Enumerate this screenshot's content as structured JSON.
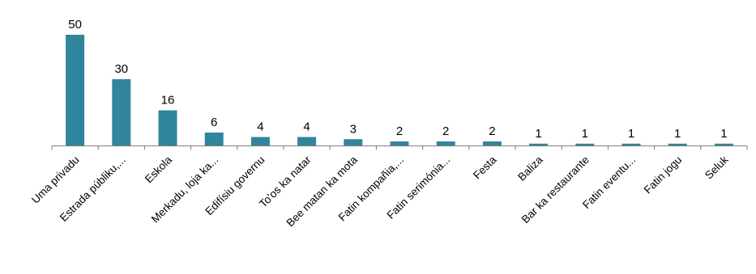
{
  "chart_data": {
    "type": "bar",
    "title": "",
    "xlabel": "",
    "ylabel": "",
    "ylim": [
      0,
      50
    ],
    "grid": false,
    "legend": "none",
    "bar_color": "#31859C",
    "categories": [
      "Uma privadu",
      "Estrada públiku,...",
      "Eskola",
      "Merkadu, loja ka...",
      "Edifísiu governu",
      "To'os ka natar",
      "Bee matan ka mota",
      "Fatin kompañia,...",
      "Fatin serimónia...",
      "Festa",
      "Baliza",
      "Bar ka restaurante",
      "Fatin eventu...",
      "Fatin jogu",
      "Seluk"
    ],
    "values": [
      50,
      30,
      16,
      6,
      4,
      4,
      3,
      2,
      2,
      2,
      1,
      1,
      1,
      1,
      1
    ],
    "value_labels": [
      "50",
      "30",
      "16",
      "6",
      "4",
      "4",
      "3",
      "2",
      "2",
      "2",
      "1",
      "1",
      "1",
      "1",
      "1"
    ]
  }
}
